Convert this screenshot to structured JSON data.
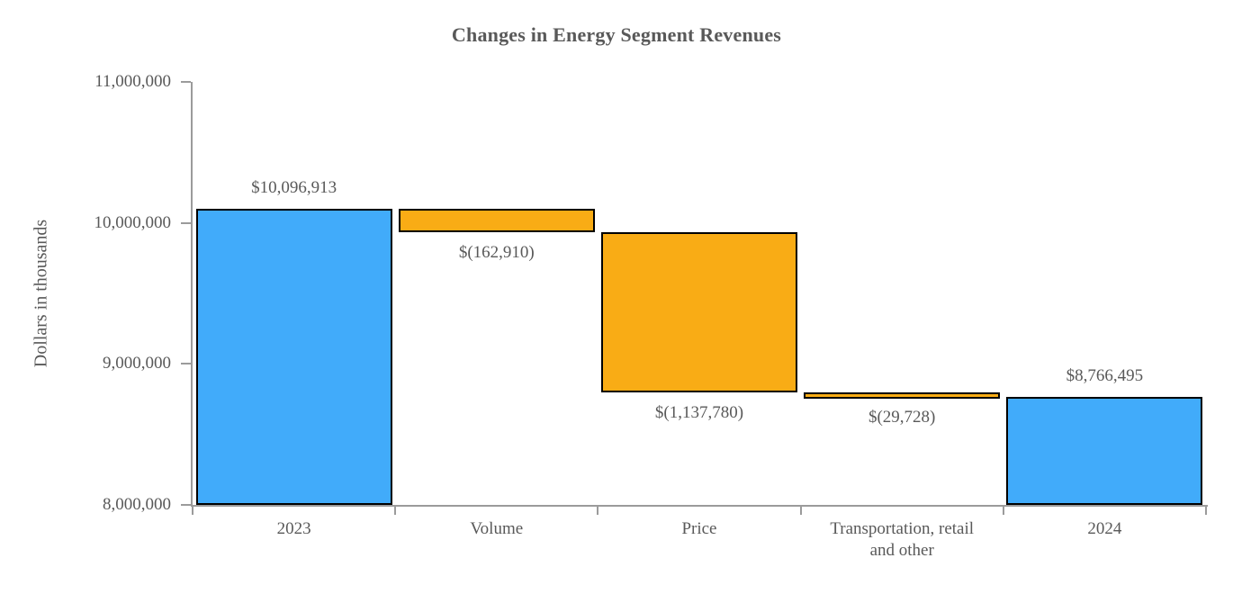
{
  "chart_data": {
    "type": "bar",
    "subtype": "waterfall",
    "title": "Changes in Energy Segment Revenues",
    "ylabel": "Dollars in thousands",
    "xlabel": "",
    "ylim": [
      8000000,
      11000000
    ],
    "yticks": [
      {
        "value": 8000000,
        "label": "8,000,000"
      },
      {
        "value": 9000000,
        "label": "9,000,000"
      },
      {
        "value": 10000000,
        "label": "10,000,000"
      },
      {
        "value": 11000000,
        "label": "11,000,000"
      }
    ],
    "grid": false,
    "legend": false,
    "categories": [
      "2023",
      "Volume",
      "Price",
      "Transportation, retail\nand other",
      "2024"
    ],
    "bars": [
      {
        "category": "2023",
        "kind": "total",
        "from": 8000000,
        "to": 10096913,
        "value": 10096913,
        "value_label": "$10,096,913",
        "label_position": "above"
      },
      {
        "category": "Volume",
        "kind": "decrease",
        "from": 9934003,
        "to": 10096913,
        "value": -162910,
        "value_label": "$(162,910)",
        "label_position": "below"
      },
      {
        "category": "Price",
        "kind": "decrease",
        "from": 8796223,
        "to": 9934003,
        "value": -1137780,
        "value_label": "$(1,137,780)",
        "label_position": "below"
      },
      {
        "category": "Transportation, retail\nand other",
        "kind": "decrease",
        "from": 8766495,
        "to": 8796223,
        "value": -29728,
        "value_label": "$(29,728)",
        "label_position": "below"
      },
      {
        "category": "2024",
        "kind": "total",
        "from": 8000000,
        "to": 8766495,
        "value": 8766495,
        "value_label": "$8,766,495",
        "label_position": "above"
      }
    ],
    "colors": {
      "total": "#41ABFA",
      "decrease": "#F9AC15",
      "bar_border": "#000000",
      "axis": "#9B9B9B",
      "text": "#595959"
    }
  }
}
